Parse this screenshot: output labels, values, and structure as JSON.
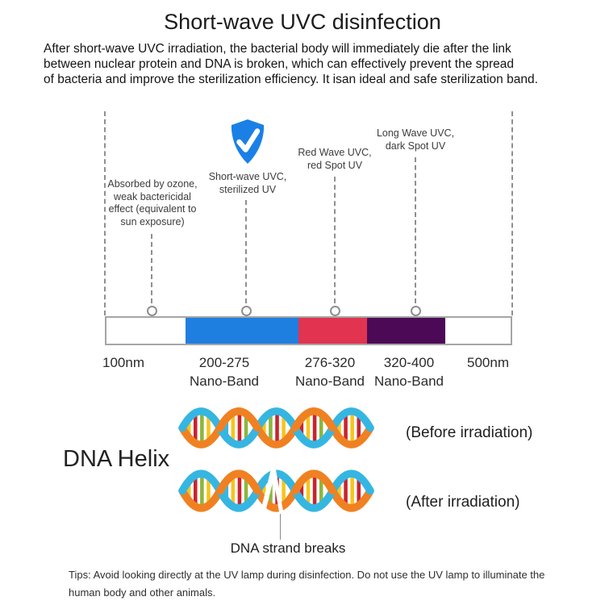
{
  "title": "Short-wave UVC disinfection",
  "intro": "After short-wave UVC irradiation, the bacterial body will immediately die after the link\nbetween nuclear protein and DNA is broken, which can effectively prevent the spread\nof bacteria and improve the sterilization efficiency. It isan ideal and safe sterilization band.",
  "spectrum": {
    "annotations": [
      {
        "label": "Absorbed by ozone,\nweak bactericidal\neffect (equivalent to\nsun exposure)"
      },
      {
        "label": "Short-wave UVC,\nsterilized UV",
        "icon": "shield-check-icon"
      },
      {
        "label": "Red Wave UVC,\nred Spot UV"
      },
      {
        "label": "Long Wave UVC,\ndark Spot UV"
      }
    ],
    "axis_start": "100nm",
    "axis_end": "500nm",
    "bands": [
      {
        "range": "200-275",
        "unit": "Nano-Band",
        "color": "#1f7fe0"
      },
      {
        "range": "276-320",
        "unit": "Nano-Band",
        "color": "#e23350"
      },
      {
        "range": "320-400",
        "unit": "Nano-Band",
        "color": "#4c0a56"
      }
    ]
  },
  "dna": {
    "section_label": "DNA Helix",
    "before_label": "(Before irradiation)",
    "after_label": "(After irradiation)",
    "break_label": "DNA strand breaks"
  },
  "tips": "Tips: Avoid looking directly at the UV lamp during disinfection. Do not use the UV lamp to illuminate the\nhuman body and other animals.",
  "colors": {
    "uvc_band": "#1f7fe0",
    "red_band": "#e23350",
    "long_band": "#4c0a56",
    "shield": "#1a80e6"
  }
}
